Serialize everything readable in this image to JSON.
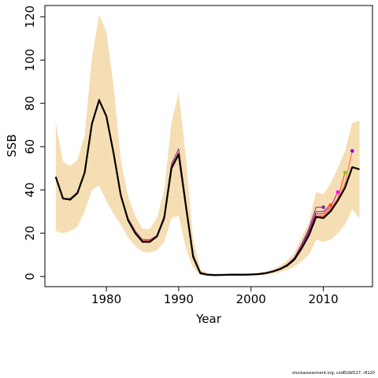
{
  "chart_data": {
    "type": "line",
    "title": "",
    "xlabel": "Year",
    "ylabel": "SSB",
    "xlim": [
      1971.5,
      2016.8
    ],
    "ylim": [
      -4.7,
      125.2
    ],
    "xticks": [
      1980,
      1990,
      2000,
      2010
    ],
    "yticks": [
      0,
      20,
      40,
      60,
      80,
      100,
      120
    ],
    "grid": false,
    "legend": "none",
    "colors": {
      "band": "#F5DEB3",
      "final": "#000000",
      "retro": [
        "#7B2D8B",
        "#8B1C62",
        "#C71585",
        "#FF4500",
        "#FF6347",
        "#FF00FF",
        "#7CCD00",
        "#B03060"
      ]
    },
    "band": {
      "x": [
        1973,
        1974,
        1975,
        1976,
        1977,
        1978,
        1979,
        1980,
        1981,
        1982,
        1983,
        1984,
        1985,
        1986,
        1987,
        1988,
        1989,
        1990,
        1991,
        1992,
        1993,
        1994,
        1995,
        1996,
        1997,
        1998,
        1999,
        2000,
        2001,
        2002,
        2003,
        2004,
        2005,
        2006,
        2007,
        2008,
        2009,
        2010,
        2011,
        2012,
        2013,
        2014,
        2015
      ],
      "upper": [
        71,
        53,
        51,
        54,
        65,
        101,
        121,
        113,
        88,
        54,
        37,
        28,
        22,
        22,
        27,
        40,
        71,
        85,
        55,
        17,
        3.5,
        1.5,
        1.3,
        1.3,
        1.4,
        1.4,
        1.4,
        1.5,
        1.7,
        2.2,
        3.2,
        5,
        7.5,
        11,
        18,
        25,
        39,
        38,
        43,
        50,
        58,
        71,
        72
      ],
      "lower": [
        21,
        20,
        21,
        23,
        30,
        40,
        42,
        35,
        29,
        24,
        18,
        14,
        11.5,
        11,
        12,
        16,
        27,
        28,
        13,
        4,
        1,
        0.6,
        0.5,
        0.5,
        0.5,
        0.5,
        0.5,
        0.6,
        0.7,
        0.9,
        1.4,
        2,
        3,
        4.5,
        7,
        10,
        17,
        16,
        17,
        20,
        24,
        31,
        27
      ]
    },
    "series": [
      {
        "x": [
          1973,
          1974,
          1975,
          1976,
          1977,
          1978,
          1979,
          1980,
          1981,
          1982,
          1983,
          1984,
          1985,
          1986,
          1987,
          1988,
          1989,
          1990,
          1991,
          1992,
          1993,
          1994,
          1995,
          1996,
          1997,
          1998,
          1999,
          2000,
          2001,
          2002,
          2003,
          2004,
          2005,
          2006,
          2007,
          2008,
          2009,
          2010
        ],
        "values": [
          46,
          36,
          36,
          39,
          48,
          71,
          82,
          74,
          58,
          38,
          27,
          21,
          17,
          17,
          19,
          28,
          52,
          59,
          34,
          10,
          2,
          1,
          0.8,
          0.9,
          1,
          1,
          1,
          1.1,
          1.3,
          1.7,
          2.5,
          3.7,
          5.6,
          8.7,
          15,
          22,
          32,
          32
        ]
      },
      {
        "x": [
          1973,
          1974,
          1975,
          1976,
          1977,
          1978,
          1979,
          1980,
          1981,
          1982,
          1983,
          1984,
          1985,
          1986,
          1987,
          1988,
          1989,
          1990,
          1991,
          1992,
          1993,
          1994,
          1995,
          1996,
          1997,
          1998,
          1999,
          2000,
          2001,
          2002,
          2003,
          2004,
          2005,
          2006,
          2007,
          2008,
          2009,
          2010,
          2011
        ],
        "values": [
          46,
          36,
          35.5,
          38.5,
          48,
          70.5,
          81.5,
          74,
          57.5,
          38,
          26.5,
          20.5,
          16.5,
          16.5,
          19,
          27.5,
          51,
          57.5,
          33,
          9.5,
          1.8,
          0.9,
          0.7,
          0.8,
          0.9,
          0.9,
          0.9,
          1,
          1.2,
          1.6,
          2.4,
          3.5,
          5.2,
          8.3,
          14,
          21,
          30,
          30,
          33
        ]
      },
      {
        "x": [
          1973,
          1974,
          1975,
          1976,
          1977,
          1978,
          1979,
          1980,
          1981,
          1982,
          1983,
          1984,
          1985,
          1986,
          1987,
          1988,
          1989,
          1990,
          1991,
          1992,
          1993,
          1994,
          1995,
          1996,
          1997,
          1998,
          1999,
          2000,
          2001,
          2002,
          2003,
          2004,
          2005,
          2006,
          2007,
          2008,
          2009,
          2010,
          2011,
          2012
        ],
        "values": [
          46,
          36,
          35.5,
          38.5,
          48,
          70.5,
          81.5,
          74,
          57.5,
          38,
          26.5,
          20.5,
          16.5,
          16.5,
          19,
          27.5,
          51,
          57.5,
          33,
          9.5,
          1.8,
          0.9,
          0.7,
          0.8,
          0.9,
          0.9,
          0.9,
          1,
          1.2,
          1.6,
          2.4,
          3.5,
          5.1,
          8,
          14,
          20,
          29,
          29,
          32,
          39
        ]
      },
      {
        "x": [
          1973,
          1974,
          1975,
          1976,
          1977,
          1978,
          1979,
          1980,
          1981,
          1982,
          1983,
          1984,
          1985,
          1986,
          1987,
          1988,
          1989,
          1990,
          1991,
          1992,
          1993,
          1994,
          1995,
          1996,
          1997,
          1998,
          1999,
          2000,
          2001,
          2002,
          2003,
          2004,
          2005,
          2006,
          2007,
          2008,
          2009,
          2010,
          2011,
          2012,
          2013
        ],
        "values": [
          46,
          36,
          35.5,
          38.5,
          48,
          70.5,
          81.5,
          74,
          57.5,
          38,
          26.5,
          20.5,
          16.5,
          16.5,
          19,
          27.5,
          50.5,
          57.5,
          33,
          9.5,
          1.8,
          0.9,
          0.7,
          0.8,
          0.9,
          0.9,
          0.9,
          1,
          1.2,
          1.6,
          2.4,
          3.5,
          5.1,
          8,
          13.5,
          19.5,
          28,
          28,
          31,
          36,
          48
        ]
      },
      {
        "x": [
          1973,
          1974,
          1975,
          1976,
          1977,
          1978,
          1979,
          1980,
          1981,
          1982,
          1983,
          1984,
          1985,
          1986,
          1987,
          1988,
          1989,
          1990,
          1991,
          1992,
          1993,
          1994,
          1995,
          1996,
          1997,
          1998,
          1999,
          2000,
          2001,
          2002,
          2003,
          2004,
          2005,
          2006,
          2007,
          2008,
          2009,
          2010,
          2011,
          2012,
          2013,
          2014
        ],
        "values": [
          46,
          36,
          35.5,
          38.5,
          48,
          70.5,
          81.5,
          74,
          57.5,
          38,
          26.5,
          20.5,
          16.5,
          16.5,
          19,
          27.5,
          50.5,
          57.5,
          33,
          9.5,
          1.8,
          0.9,
          0.7,
          0.8,
          0.9,
          0.9,
          0.9,
          1,
          1.2,
          1.6,
          2.4,
          3.5,
          5.1,
          8,
          13.5,
          19.5,
          28,
          27.5,
          30.5,
          35.5,
          43,
          58
        ]
      },
      {
        "x": [
          1973,
          1974,
          1975,
          1976,
          1977,
          1978,
          1979,
          1980,
          1981,
          1982,
          1983,
          1984,
          1985,
          1986,
          1987,
          1988,
          1989,
          1990,
          1991,
          1992,
          1993,
          1994,
          1995,
          1996,
          1997,
          1998,
          1999,
          2000,
          2001,
          2002,
          2003,
          2004,
          2005,
          2006,
          2007,
          2008,
          2009,
          2010,
          2011,
          2012,
          2013,
          2014,
          2015
        ],
        "values": [
          46,
          36,
          35.5,
          38.5,
          48,
          70.5,
          81.5,
          74,
          57,
          37.5,
          26,
          20,
          16,
          16,
          18.5,
          27,
          50,
          56.5,
          32.5,
          9,
          1.5,
          0.8,
          0.6,
          0.7,
          0.8,
          0.8,
          0.8,
          0.9,
          1.1,
          1.5,
          2.3,
          3.4,
          5,
          7.8,
          13,
          19,
          27.5,
          27,
          30,
          35,
          41,
          50.5,
          49.5
        ]
      }
    ],
    "endpoints": [
      {
        "x": 2010,
        "y": 32,
        "color": "#7B2D8B"
      },
      {
        "x": 2011,
        "y": 33,
        "color": "#FF4500"
      },
      {
        "x": 2012,
        "y": 39,
        "color": "#FF00FF"
      },
      {
        "x": 2013,
        "y": 48,
        "color": "#7CCD00"
      },
      {
        "x": 2014,
        "y": 58,
        "color": "#9400D3"
      }
    ]
  },
  "footer": "stockassessment.org, codEGWG17, r8120"
}
